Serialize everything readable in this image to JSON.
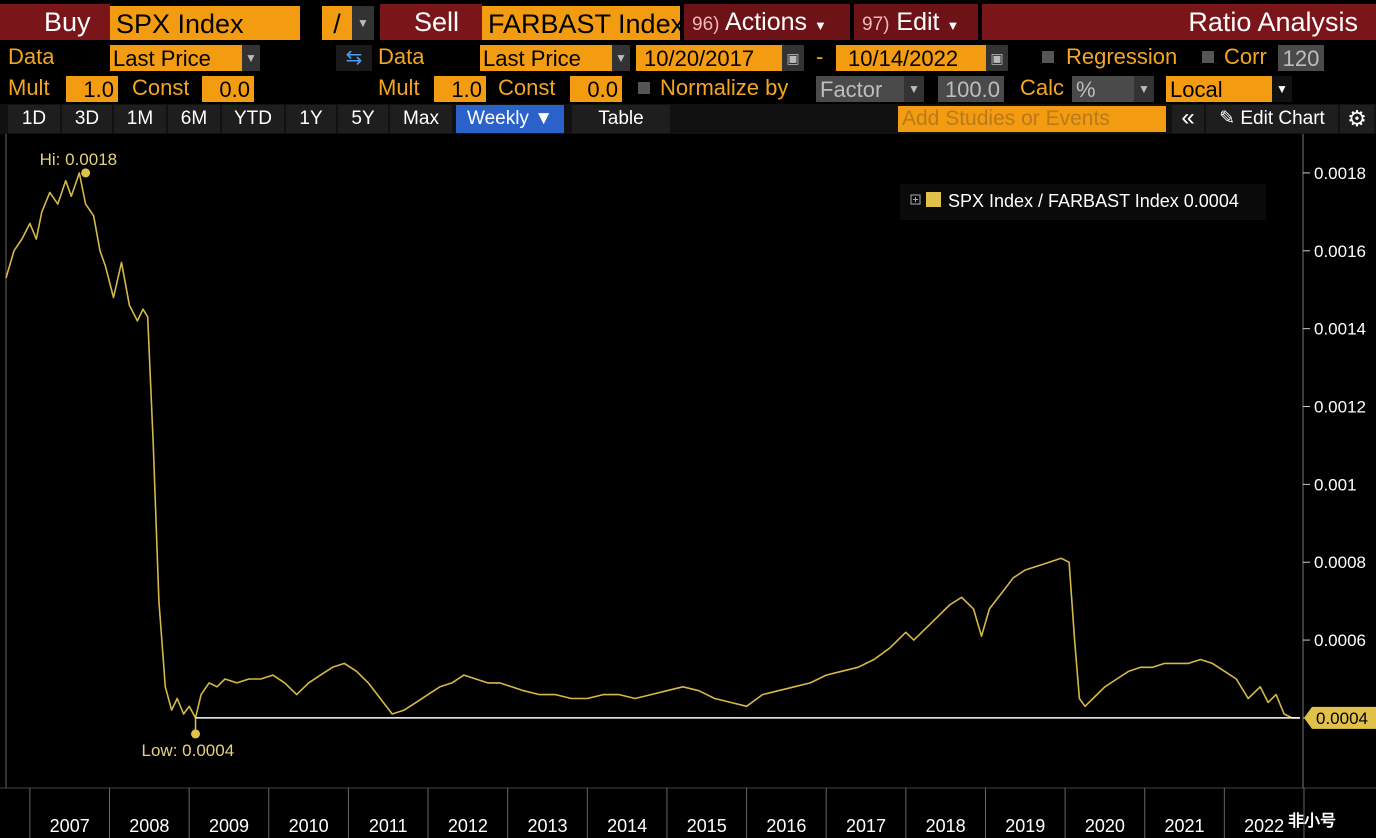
{
  "header": {
    "buy_label": "Buy",
    "buy_ticker": "SPX Index",
    "operator": "/",
    "sell_label": "Sell",
    "sell_ticker": "FARBAST Index",
    "actions_num": "96)",
    "actions_label": "Actions",
    "edit_num": "97)",
    "edit_label": "Edit",
    "title": "Ratio Analysis"
  },
  "row2": {
    "data_label": "Data",
    "data_value": "Last Price",
    "data2_label": "Data",
    "data2_value": "Last Price",
    "start_date": "10/20/2017",
    "dash": "-",
    "end_date": "10/14/2022",
    "regression_label": "Regression",
    "corr_label": "Corr",
    "corr_value": "120"
  },
  "row3": {
    "mult_label": "Mult",
    "mult_value": "1.0",
    "const_label": "Const",
    "const_value": "0.0",
    "mult2_label": "Mult",
    "mult2_value": "1.0",
    "const2_label": "Const",
    "const2_value": "0.0",
    "normalize_label": "Normalize by",
    "normalize_value": "Factor",
    "factor_value": "100.0",
    "calc_label": "Calc",
    "calc_value": "%",
    "local_value": "Local"
  },
  "tabs": [
    "1D",
    "3D",
    "1M",
    "6M",
    "YTD",
    "1Y",
    "5Y",
    "Max",
    "Weekly ▼",
    "Table"
  ],
  "active_tab": "Weekly ▼",
  "toolbar": {
    "studies_placeholder": "Add Studies or Events",
    "collapse_glyph": "«",
    "edit_chart_label": "Edit Chart",
    "settings_glyph": "⚙"
  },
  "watermark": "非小号",
  "colors": {
    "line": "#d4b84a",
    "accent": "#f39c12",
    "redbar": "#7a1519",
    "active_tab": "#2a62c9"
  },
  "chart_data": {
    "type": "line",
    "title": "",
    "legend": "SPX Index / FARBAST Index 0.0004",
    "legend_position": "top-right",
    "hi_label": "Hi: 0.0018",
    "low_label": "Low: 0.0004",
    "last_label": "0.0004",
    "last_value": 0.0004,
    "xlabel": "",
    "ylabel": "",
    "x_ticks": [
      "2007",
      "2008",
      "2009",
      "2010",
      "2011",
      "2012",
      "2013",
      "2014",
      "2015",
      "2016",
      "2017",
      "2018",
      "2019",
      "2020",
      "2021",
      "2022"
    ],
    "y_ticks": [
      0.0018,
      0.0016,
      0.0014,
      0.0012,
      0.001,
      0.0008,
      0.0006,
      0.0004
    ],
    "y_tick_labels": [
      "0.0018",
      "0.0016",
      "0.0014",
      "0.0012",
      "0.001",
      "0.0008",
      "0.0006",
      "0.0004"
    ],
    "ylim": [
      0.00022,
      0.0019
    ],
    "xlim": [
      2006.7,
      2022.95
    ],
    "grid": false,
    "series": [
      {
        "name": "SPX Index / FARBAST Index",
        "points": [
          [
            2006.7,
            0.00153
          ],
          [
            2006.8,
            0.0016
          ],
          [
            2006.9,
            0.00163
          ],
          [
            2007.0,
            0.00167
          ],
          [
            2007.08,
            0.00163
          ],
          [
            2007.15,
            0.0017
          ],
          [
            2007.25,
            0.00175
          ],
          [
            2007.35,
            0.00172
          ],
          [
            2007.45,
            0.00178
          ],
          [
            2007.52,
            0.00174
          ],
          [
            2007.62,
            0.0018
          ],
          [
            2007.7,
            0.00172
          ],
          [
            2007.8,
            0.00169
          ],
          [
            2007.88,
            0.0016
          ],
          [
            2007.95,
            0.00156
          ],
          [
            2008.05,
            0.00148
          ],
          [
            2008.15,
            0.00157
          ],
          [
            2008.25,
            0.00146
          ],
          [
            2008.35,
            0.00142
          ],
          [
            2008.42,
            0.00145
          ],
          [
            2008.48,
            0.00143
          ],
          [
            2008.55,
            0.0011
          ],
          [
            2008.62,
            0.0007
          ],
          [
            2008.7,
            0.00048
          ],
          [
            2008.78,
            0.00042
          ],
          [
            2008.85,
            0.00045
          ],
          [
            2008.93,
            0.00041
          ],
          [
            2009.0,
            0.00043
          ],
          [
            2009.08,
            0.0004
          ],
          [
            2009.15,
            0.00046
          ],
          [
            2009.25,
            0.00049
          ],
          [
            2009.35,
            0.00048
          ],
          [
            2009.45,
            0.0005
          ],
          [
            2009.6,
            0.00049
          ],
          [
            2009.75,
            0.0005
          ],
          [
            2009.9,
            0.0005
          ],
          [
            2010.05,
            0.00051
          ],
          [
            2010.2,
            0.00049
          ],
          [
            2010.35,
            0.00046
          ],
          [
            2010.5,
            0.00049
          ],
          [
            2010.65,
            0.00051
          ],
          [
            2010.8,
            0.00053
          ],
          [
            2010.95,
            0.00054
          ],
          [
            2011.1,
            0.00052
          ],
          [
            2011.25,
            0.00049
          ],
          [
            2011.4,
            0.00045
          ],
          [
            2011.55,
            0.00041
          ],
          [
            2011.7,
            0.00042
          ],
          [
            2011.85,
            0.00044
          ],
          [
            2012.0,
            0.00046
          ],
          [
            2012.15,
            0.00048
          ],
          [
            2012.3,
            0.00049
          ],
          [
            2012.45,
            0.00051
          ],
          [
            2012.6,
            0.0005
          ],
          [
            2012.75,
            0.00049
          ],
          [
            2012.9,
            0.00049
          ],
          [
            2013.05,
            0.00048
          ],
          [
            2013.2,
            0.00047
          ],
          [
            2013.4,
            0.00046
          ],
          [
            2013.6,
            0.00046
          ],
          [
            2013.8,
            0.00045
          ],
          [
            2014.0,
            0.00045
          ],
          [
            2014.2,
            0.00046
          ],
          [
            2014.4,
            0.00046
          ],
          [
            2014.6,
            0.00045
          ],
          [
            2014.8,
            0.00046
          ],
          [
            2015.0,
            0.00047
          ],
          [
            2015.2,
            0.00048
          ],
          [
            2015.4,
            0.00047
          ],
          [
            2015.6,
            0.00045
          ],
          [
            2015.8,
            0.00044
          ],
          [
            2016.0,
            0.00043
          ],
          [
            2016.2,
            0.00046
          ],
          [
            2016.4,
            0.00047
          ],
          [
            2016.6,
            0.00048
          ],
          [
            2016.8,
            0.00049
          ],
          [
            2017.0,
            0.00051
          ],
          [
            2017.2,
            0.00052
          ],
          [
            2017.4,
            0.00053
          ],
          [
            2017.6,
            0.00055
          ],
          [
            2017.8,
            0.00058
          ],
          [
            2018.0,
            0.00062
          ],
          [
            2018.1,
            0.0006
          ],
          [
            2018.25,
            0.00063
          ],
          [
            2018.4,
            0.00066
          ],
          [
            2018.55,
            0.00069
          ],
          [
            2018.7,
            0.00071
          ],
          [
            2018.85,
            0.00068
          ],
          [
            2018.95,
            0.00061
          ],
          [
            2019.05,
            0.00068
          ],
          [
            2019.2,
            0.00072
          ],
          [
            2019.35,
            0.00076
          ],
          [
            2019.5,
            0.00078
          ],
          [
            2019.65,
            0.00079
          ],
          [
            2019.8,
            0.0008
          ],
          [
            2019.95,
            0.00081
          ],
          [
            2020.05,
            0.0008
          ],
          [
            2020.12,
            0.0006
          ],
          [
            2020.18,
            0.00045
          ],
          [
            2020.25,
            0.00043
          ],
          [
            2020.35,
            0.00045
          ],
          [
            2020.5,
            0.00048
          ],
          [
            2020.65,
            0.0005
          ],
          [
            2020.8,
            0.00052
          ],
          [
            2020.95,
            0.00053
          ],
          [
            2021.1,
            0.00053
          ],
          [
            2021.25,
            0.00054
          ],
          [
            2021.4,
            0.00054
          ],
          [
            2021.55,
            0.00054
          ],
          [
            2021.7,
            0.00055
          ],
          [
            2021.85,
            0.00054
          ],
          [
            2022.0,
            0.00052
          ],
          [
            2022.15,
            0.0005
          ],
          [
            2022.3,
            0.00045
          ],
          [
            2022.45,
            0.00048
          ],
          [
            2022.55,
            0.00044
          ],
          [
            2022.65,
            0.00046
          ],
          [
            2022.75,
            0.00041
          ],
          [
            2022.85,
            0.0004
          ],
          [
            2022.95,
            0.0004
          ]
        ]
      }
    ],
    "hi_point": [
      2007.7,
      0.0018
    ],
    "low_point": [
      2009.08,
      0.0004
    ]
  }
}
